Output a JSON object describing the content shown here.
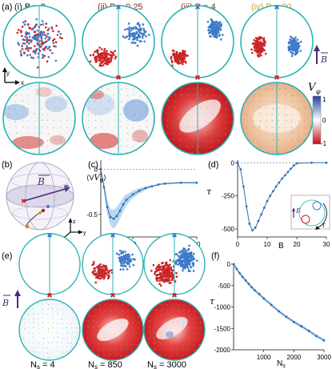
{
  "panels": {
    "a": {
      "label": "(a)",
      "columns": [
        {
          "title": "(i) B = 0",
          "color": "#111111",
          "B": 0
        },
        {
          "title": "(ii) B = 0.25",
          "color": "#8b1a1a",
          "B": 0.25
        },
        {
          "title": "(iii) B = 4",
          "color": "#a52121",
          "B": 4
        },
        {
          "title": "(iv) B = 20",
          "color": "#d6a020",
          "B": 20
        }
      ],
      "axes_x": "x",
      "axes_y": "y",
      "B_arrow_label": "B",
      "colorbar": {
        "label": "V",
        "label_sub": "φ",
        "ticks": [
          "1",
          "0",
          "-1"
        ],
        "colors": [
          "#1f3f9e",
          "#ffffff",
          "#c0101a"
        ]
      }
    },
    "b": {
      "label": "(b)",
      "vector_label": "B",
      "axes": [
        "z",
        "y",
        "x"
      ]
    },
    "c": {
      "label": "(c)",
      "ylabel_main": "⟨V",
      "ylabel_sub": "φ",
      "ylabel_close": "⟩",
      "xlabel": "B",
      "xticks": [
        "0",
        "10",
        "20",
        "30"
      ],
      "yticks": [
        "0",
        "-0.5"
      ]
    },
    "d": {
      "label": "(d)",
      "ylabel": "τ",
      "xlabel": "B",
      "xticks": [
        "0",
        "10",
        "20",
        "30"
      ],
      "yticks": [
        "0",
        "-250",
        "-500"
      ],
      "inset_B": "B",
      "inset_tau": "τ"
    },
    "e": {
      "label": "(e)",
      "vector_label": "B",
      "captions": [
        "N",
        "N",
        "N"
      ],
      "caption_sub": "s",
      "caption_values": [
        "= 4",
        "= 850",
        "= 3000"
      ],
      "Ns": [
        4,
        850,
        3000
      ]
    },
    "f": {
      "label": "(f)",
      "ylabel": "τ",
      "xlabel": "N",
      "xlabel_sub": "s",
      "xticks": [
        "1000",
        "2000",
        "3000"
      ],
      "yticks": [
        "0",
        "-500",
        "-1000",
        "-1500",
        "-2000"
      ]
    }
  },
  "colors": {
    "accent": "#2f9fd0",
    "red": "#cc2222",
    "blue": "#3a7ac8",
    "purple": "#4b2a7a",
    "circle": "#2bb3b3",
    "line": "#2f6fb0",
    "band": "#9ec8ea"
  },
  "chart_data": [
    {
      "type": "line",
      "panel": "(c)",
      "xlabel": "B",
      "ylabel": "⟨Vφ⟩",
      "xlim": [
        0,
        30
      ],
      "ylim": [
        -0.75,
        0.1
      ],
      "x": [
        0,
        1,
        2,
        3,
        4,
        5,
        6,
        7,
        8,
        10,
        12,
        14,
        16,
        18,
        20,
        25,
        30
      ],
      "y": [
        0,
        -0.2,
        -0.42,
        -0.53,
        -0.55,
        -0.52,
        -0.46,
        -0.39,
        -0.34,
        -0.28,
        -0.24,
        -0.21,
        -0.19,
        -0.17,
        -0.16,
        -0.15,
        -0.15
      ],
      "band_low": [
        0,
        -0.25,
        -0.5,
        -0.62,
        -0.66,
        -0.62,
        -0.55,
        -0.47,
        -0.4,
        -0.32,
        -0.27,
        -0.23,
        -0.2,
        -0.18,
        -0.17,
        -0.16,
        -0.16
      ],
      "band_high": [
        0,
        -0.15,
        -0.34,
        -0.44,
        -0.45,
        -0.42,
        -0.37,
        -0.31,
        -0.28,
        -0.24,
        -0.21,
        -0.19,
        -0.18,
        -0.16,
        -0.15,
        -0.14,
        -0.14
      ],
      "reference_line": 0
    },
    {
      "type": "line",
      "panel": "(d)",
      "xlabel": "B",
      "ylabel": "τ",
      "xlim": [
        0,
        30
      ],
      "ylim": [
        -560,
        20
      ],
      "x": [
        0,
        1,
        2,
        3,
        4,
        5,
        6,
        7,
        8,
        9,
        10,
        11,
        12,
        13,
        14,
        15,
        16,
        17,
        18,
        19,
        20,
        25,
        30
      ],
      "y": [
        0,
        -50,
        -180,
        -330,
        -460,
        -510,
        -490,
        -440,
        -390,
        -340,
        -290,
        -250,
        -215,
        -180,
        -150,
        -120,
        -95,
        -70,
        -45,
        -20,
        -5,
        0,
        0
      ],
      "reference_line": 0
    },
    {
      "type": "line",
      "panel": "(f)",
      "xlabel": "Ns",
      "ylabel": "τ",
      "xlim": [
        0,
        3000
      ],
      "ylim": [
        -2000,
        0
      ],
      "x": [
        4,
        100,
        200,
        300,
        400,
        500,
        600,
        700,
        850,
        1000,
        1250,
        1500,
        1750,
        2000,
        2250,
        2500,
        2750,
        3000
      ],
      "y": [
        0,
        -110,
        -210,
        -300,
        -380,
        -460,
        -540,
        -610,
        -700,
        -800,
        -950,
        -1100,
        -1230,
        -1350,
        -1450,
        -1560,
        -1680,
        -1780
      ]
    }
  ]
}
